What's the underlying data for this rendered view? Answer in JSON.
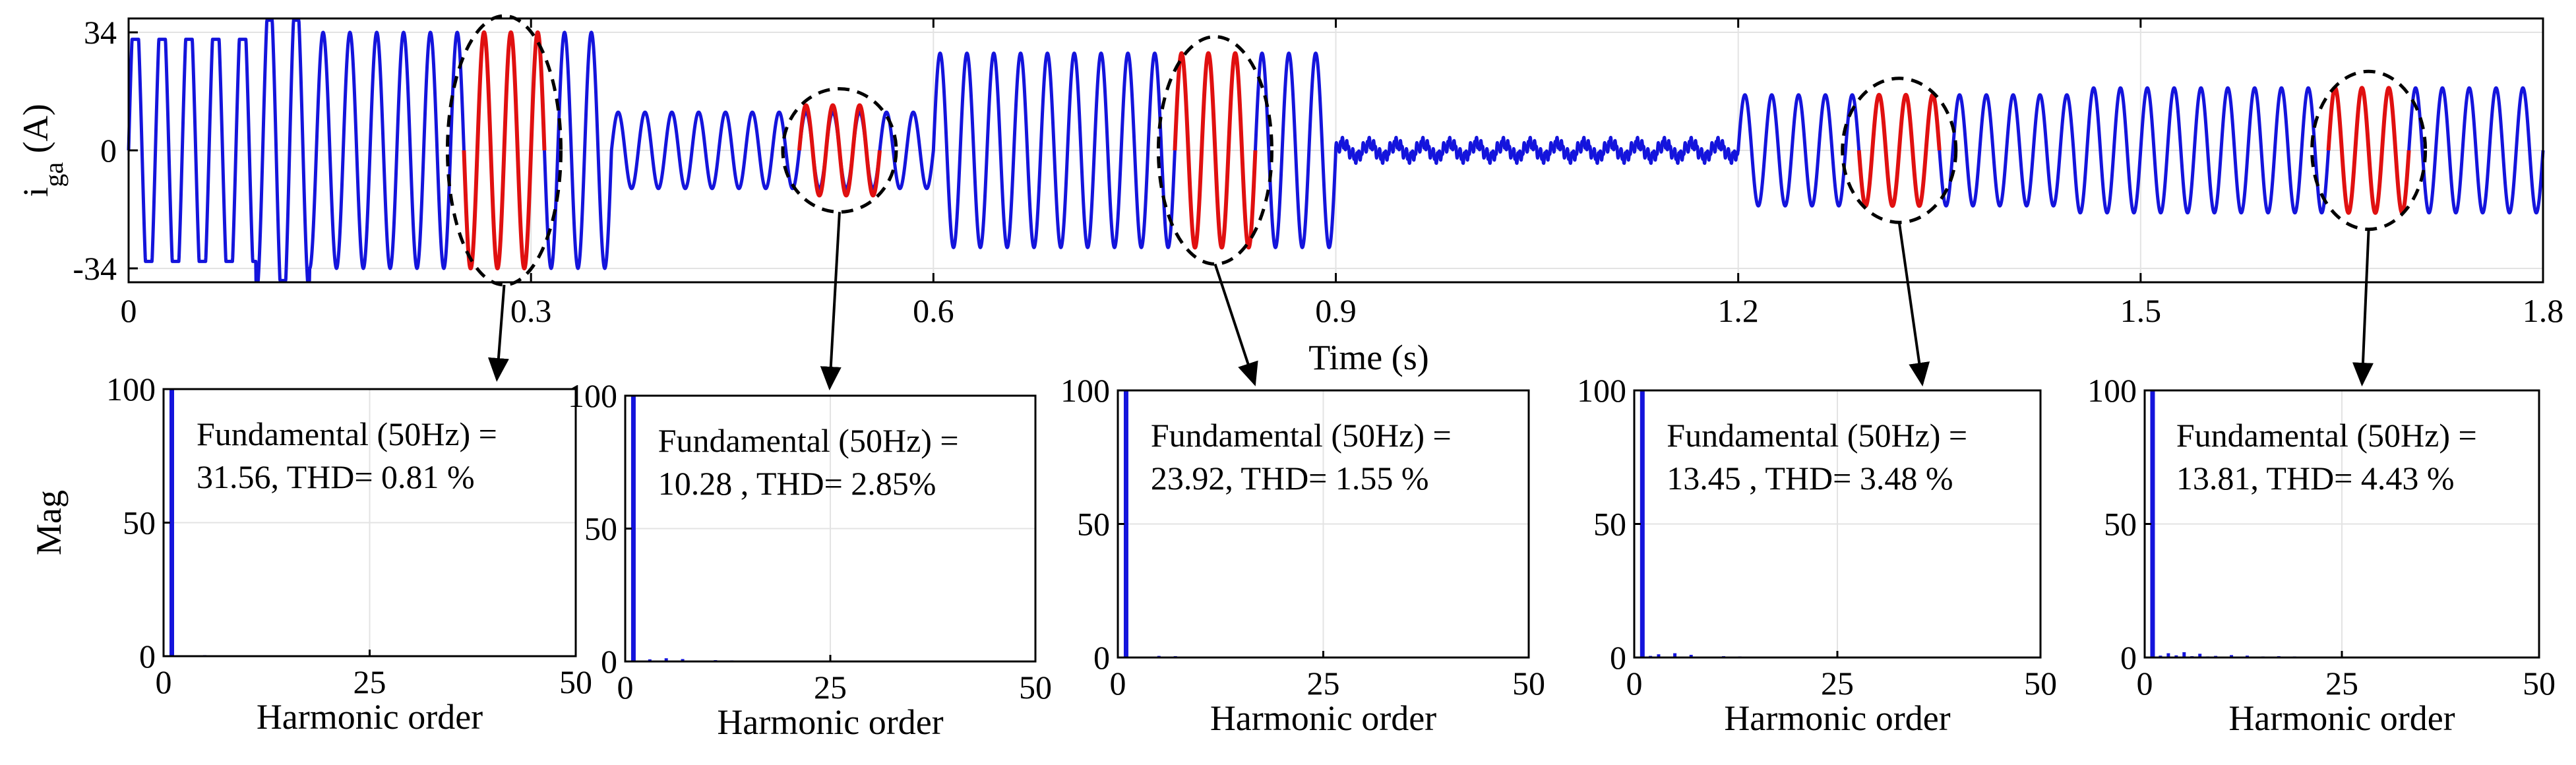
{
  "figure": {
    "colors": {
      "trace": "#1414dc",
      "highlight": "#e01010",
      "axis": "#000000",
      "grid": "#e3e3e3",
      "arrow": "#000000"
    }
  },
  "chart_data": [
    {
      "id": "current",
      "type": "line",
      "title": "",
      "xlabel": "Time (s)",
      "ylabel_main": "i",
      "ylabel_sub": "ga",
      "ylabel_unit": " (A)",
      "xlim": [
        0,
        1.8
      ],
      "ylim": [
        -38,
        38
      ],
      "xticks": [
        0,
        0.3,
        0.6,
        0.9,
        1.2,
        1.5,
        1.8
      ],
      "xtick_labels": [
        "0",
        "0.3",
        "0.6",
        "0.9",
        "1.2",
        "1.5",
        "1.8"
      ],
      "yticks": [
        -34,
        0,
        34
      ],
      "ytick_labels": [
        "-34",
        "0",
        "34"
      ],
      "frequency_hz": 50,
      "segments": [
        {
          "t0": 0.0,
          "t1": 0.095,
          "shape": "clipped",
          "amp": 45,
          "clip": 32
        },
        {
          "t0": 0.095,
          "t1": 0.135,
          "shape": "transient",
          "amp": 42
        },
        {
          "t0": 0.135,
          "t1": 0.36,
          "shape": "sine",
          "amp": 34
        },
        {
          "t0": 0.36,
          "t1": 0.6,
          "shape": "sine",
          "amp": 11
        },
        {
          "t0": 0.6,
          "t1": 0.9,
          "shape": "sine",
          "amp": 28
        },
        {
          "t0": 0.9,
          "t1": 1.2,
          "shape": "sine",
          "amp": 2
        },
        {
          "t0": 1.2,
          "t1": 1.45,
          "shape": "sine",
          "amp": 16
        },
        {
          "t0": 1.45,
          "t1": 1.8,
          "shape": "sine",
          "amp": 18
        }
      ],
      "highlights": [
        {
          "t0": 0.25,
          "t1": 0.31,
          "amp": 34
        },
        {
          "t0": 0.5,
          "t1": 0.56,
          "amp": 13
        },
        {
          "t0": 0.78,
          "t1": 0.84,
          "amp": 28
        },
        {
          "t0": 1.29,
          "t1": 1.35,
          "amp": 16
        },
        {
          "t0": 1.64,
          "t1": 1.7,
          "amp": 18
        }
      ]
    },
    {
      "id": "fft1",
      "type": "bar",
      "xlabel": "Harmonic order",
      "ylabel": "Mag",
      "xlim": [
        0,
        50
      ],
      "ylim": [
        0,
        100
      ],
      "xticks": [
        0,
        25,
        50
      ],
      "yticks": [
        0,
        50,
        100
      ],
      "annotation": [
        "Fundamental (50Hz) =",
        "31.56, THD= 0.81 %"
      ],
      "harmonic_order": [
        1,
        5,
        7,
        11,
        13,
        17,
        19,
        23,
        25,
        29,
        31,
        35,
        37,
        41,
        43,
        47,
        49
      ],
      "magnitude": [
        100,
        0.4,
        0.3,
        0.2,
        0.2,
        0.1,
        0.1,
        0.1,
        0.1,
        0.1,
        0.1,
        0.1,
        0.1,
        0.1,
        0.3,
        0.1,
        0.1
      ]
    },
    {
      "id": "fft2",
      "type": "bar",
      "xlabel": "Harmonic order",
      "ylabel": "",
      "xlim": [
        0,
        50
      ],
      "ylim": [
        0,
        100
      ],
      "xticks": [
        0,
        25,
        50
      ],
      "yticks": [
        0,
        50,
        100
      ],
      "annotation": [
        "Fundamental (50Hz) =",
        "10.28 , THD= 2.85%"
      ],
      "harmonic_order": [
        1,
        3,
        5,
        7,
        11,
        13,
        17,
        19,
        23,
        25,
        29,
        31,
        35,
        37,
        41,
        43
      ],
      "magnitude": [
        100,
        0.8,
        1.2,
        0.9,
        0.5,
        0.4,
        0.3,
        0.3,
        0.3,
        0.2,
        0.2,
        0.2,
        0.2,
        0.2,
        0.1,
        0.1
      ]
    },
    {
      "id": "fft3",
      "type": "bar",
      "xlabel": "Harmonic order",
      "ylabel": "",
      "xlim": [
        0,
        50
      ],
      "ylim": [
        0,
        100
      ],
      "xticks": [
        0,
        25,
        50
      ],
      "yticks": [
        0,
        50,
        100
      ],
      "annotation": [
        "Fundamental (50Hz) =",
        "23.92, THD= 1.55 %"
      ],
      "harmonic_order": [
        1,
        5,
        7,
        11,
        13,
        17,
        19,
        23,
        25,
        29,
        31
      ],
      "magnitude": [
        100,
        0.6,
        0.5,
        0.3,
        0.3,
        0.2,
        0.2,
        0.1,
        0.1,
        0.1,
        0.1
      ]
    },
    {
      "id": "fft4",
      "type": "bar",
      "xlabel": "Harmonic order",
      "ylabel": "",
      "xlim": [
        0,
        50
      ],
      "ylim": [
        0,
        100
      ],
      "xticks": [
        0,
        25,
        50
      ],
      "yticks": [
        0,
        50,
        100
      ],
      "annotation": [
        "Fundamental (50Hz) =",
        "13.45 , THD= 3.48 %"
      ],
      "harmonic_order": [
        1,
        2,
        3,
        5,
        7,
        11,
        13,
        17,
        19,
        23,
        25
      ],
      "magnitude": [
        100,
        0.6,
        1.2,
        1.6,
        1.0,
        0.5,
        0.4,
        0.3,
        0.2,
        0.2,
        0.1
      ]
    },
    {
      "id": "fft5",
      "type": "bar",
      "xlabel": "Harmonic order",
      "ylabel": "",
      "xlim": [
        0,
        50
      ],
      "ylim": [
        0,
        100
      ],
      "xticks": [
        0,
        25,
        50
      ],
      "yticks": [
        0,
        50,
        100
      ],
      "annotation": [
        "Fundamental (50Hz) =",
        "13.81, THD= 4.43 %"
      ],
      "harmonic_order": [
        1,
        2,
        3,
        4,
        5,
        6,
        7,
        8,
        9,
        11,
        13,
        15,
        17,
        19,
        21,
        23,
        25
      ],
      "magnitude": [
        100,
        0.7,
        1.6,
        0.8,
        2.0,
        0.5,
        1.4,
        0.4,
        0.6,
        0.9,
        0.7,
        0.4,
        0.5,
        0.4,
        0.3,
        0.3,
        0.2
      ]
    }
  ]
}
